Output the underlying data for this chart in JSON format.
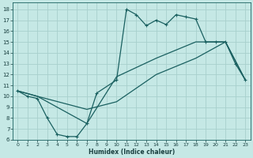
{
  "xlabel": "Humidex (Indice chaleur)",
  "background_color": "#c5e8e5",
  "grid_color": "#a8d0cc",
  "line_color": "#1a6060",
  "xlim": [
    -0.5,
    23.5
  ],
  "ylim": [
    6,
    18.6
  ],
  "yticks": [
    6,
    7,
    8,
    9,
    10,
    11,
    12,
    13,
    14,
    15,
    16,
    17,
    18
  ],
  "xticks": [
    0,
    1,
    2,
    3,
    4,
    5,
    6,
    7,
    8,
    9,
    10,
    11,
    12,
    13,
    14,
    15,
    16,
    17,
    18,
    19,
    20,
    21,
    22,
    23
  ],
  "line1_x": [
    0,
    1,
    2,
    3,
    4,
    5,
    6,
    7,
    8,
    10,
    11,
    12,
    13,
    14,
    15,
    16,
    17,
    18,
    19,
    20,
    21,
    22,
    23
  ],
  "line1_y": [
    10.5,
    10.0,
    9.8,
    8.0,
    6.5,
    6.3,
    6.3,
    7.5,
    10.3,
    11.5,
    18.0,
    17.5,
    16.5,
    17.0,
    16.6,
    17.5,
    17.3,
    17.1,
    15.0,
    15.0,
    15.0,
    13.0,
    11.5
  ],
  "line2_x": [
    0,
    2,
    7,
    10,
    14,
    18,
    21,
    23
  ],
  "line2_y": [
    10.5,
    10.0,
    7.5,
    11.8,
    13.5,
    15.0,
    15.0,
    11.5
  ],
  "line3_x": [
    0,
    2,
    7,
    10,
    14,
    18,
    21,
    23
  ],
  "line3_y": [
    10.5,
    10.0,
    8.8,
    9.5,
    12.0,
    13.5,
    15.0,
    11.5
  ]
}
